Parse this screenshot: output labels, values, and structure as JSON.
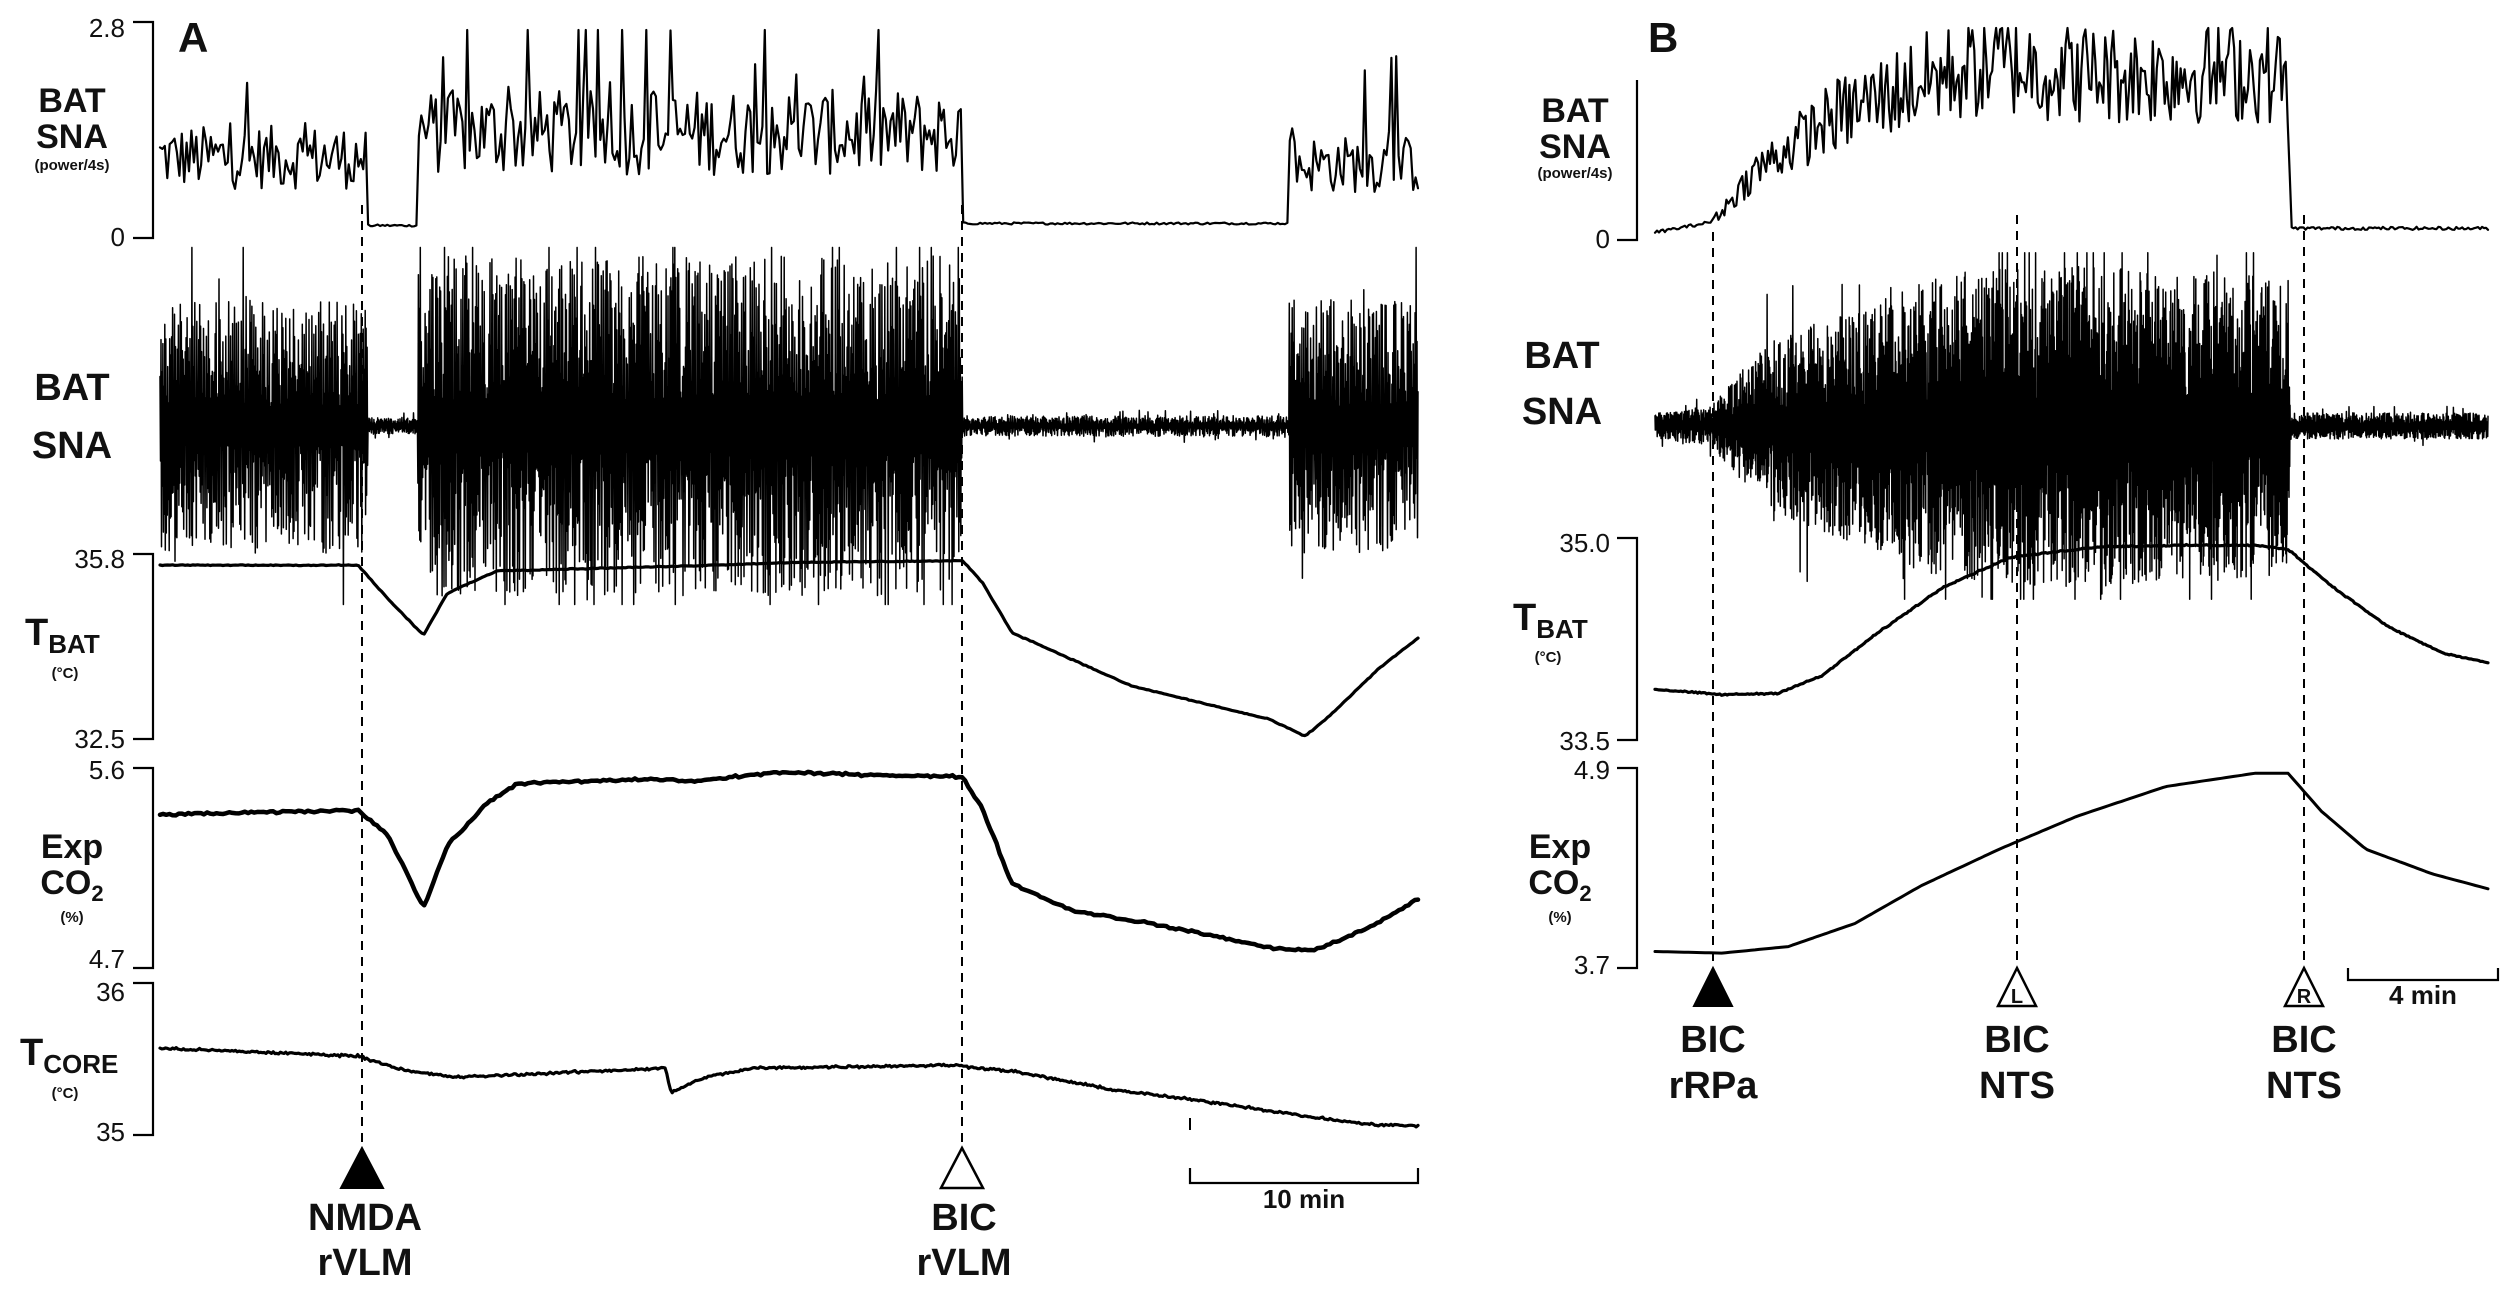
{
  "chart_data": [
    {
      "panel": "A",
      "type": "line",
      "scale_bar_label": "10 min",
      "events": [
        {
          "label1": "NMDA",
          "label2": "rVLM",
          "marker": "filled-triangle",
          "t_min": 10.5
        },
        {
          "label1": "BIC",
          "label2": "rVLM",
          "marker": "open-triangle",
          "t_min": 40.5
        }
      ],
      "traces": [
        {
          "id": "bat_sna_power",
          "label_lines": [
            "BAT",
            "SNA"
          ],
          "unit": "(power/4s)",
          "ticks": [
            "2.8",
            "0"
          ],
          "ylim": [
            0,
            2.8
          ],
          "segments": [
            [
              0,
              10.5,
              1.0
            ],
            [
              10.5,
              13,
              0.02
            ],
            [
              13,
              40.5,
              1.35
            ],
            [
              40.5,
              57,
              0.05
            ],
            [
              57,
              63.5,
              0.9
            ]
          ]
        },
        {
          "id": "bat_sna_raw",
          "label_lines": [
            "BAT",
            "SNA"
          ],
          "unit": "",
          "segments": [
            [
              0,
              10.5,
              0.75
            ],
            [
              10.5,
              13,
              0.05
            ],
            [
              13,
              40.5,
              1.0
            ],
            [
              40.5,
              57,
              0.06
            ],
            [
              57,
              63.5,
              0.75
            ]
          ]
        },
        {
          "id": "t_bat",
          "label_main": "T",
          "label_sub": "BAT",
          "unit": "(°C)",
          "ticks": [
            "35.8",
            "32.5"
          ],
          "ylim": [
            32.5,
            35.8
          ],
          "points": [
            [
              0,
              35.6
            ],
            [
              10,
              35.6
            ],
            [
              11.5,
              35.0
            ],
            [
              13.3,
              34.35
            ],
            [
              14.5,
              35.1
            ],
            [
              17,
              35.5
            ],
            [
              26,
              35.58
            ],
            [
              32,
              35.65
            ],
            [
              40.5,
              35.68
            ],
            [
              41.5,
              35.3
            ],
            [
              43,
              34.4
            ],
            [
              49,
              33.45
            ],
            [
              56,
              32.85
            ],
            [
              57.8,
              32.55
            ],
            [
              59,
              32.9
            ],
            [
              61.5,
              33.75
            ],
            [
              63.5,
              34.3
            ]
          ]
        },
        {
          "id": "exp_co2",
          "label_main": "Exp",
          "label_co2": "CO",
          "label_co2_sub": "2",
          "unit": "(%)",
          "ticks": [
            "5.6",
            "4.7"
          ],
          "ylim": [
            4.7,
            5.6
          ],
          "points": [
            [
              0,
              5.39
            ],
            [
              10,
              5.41
            ],
            [
              11.5,
              5.3
            ],
            [
              12.5,
              5.12
            ],
            [
              13.3,
              4.97
            ],
            [
              14.5,
              5.25
            ],
            [
              16.5,
              5.44
            ],
            [
              18,
              5.53
            ],
            [
              25,
              5.55
            ],
            [
              27,
              5.54
            ],
            [
              31,
              5.58
            ],
            [
              40.5,
              5.56
            ],
            [
              41.5,
              5.42
            ],
            [
              43,
              5.08
            ],
            [
              46,
              4.96
            ],
            [
              50,
              4.9
            ],
            [
              54,
              4.83
            ],
            [
              56,
              4.79
            ],
            [
              58.3,
              4.78
            ],
            [
              61,
              4.88
            ],
            [
              63.5,
              5.01
            ]
          ]
        },
        {
          "id": "t_core",
          "label_main": "T",
          "label_sub": "CORE",
          "unit": "(°C)",
          "ticks": [
            "36",
            "35"
          ],
          "ylim": [
            35,
            36
          ],
          "points": [
            [
              0,
              35.57
            ],
            [
              10,
              35.52
            ],
            [
              12.5,
              35.42
            ],
            [
              15,
              35.38
            ],
            [
              25.5,
              35.44
            ],
            [
              25.8,
              35.28
            ],
            [
              27.5,
              35.38
            ],
            [
              30,
              35.44
            ],
            [
              40,
              35.46
            ],
            [
              43,
              35.42
            ],
            [
              48,
              35.3
            ],
            [
              54,
              35.2
            ],
            [
              58,
              35.12
            ],
            [
              61,
              35.07
            ],
            [
              63.5,
              35.06
            ]
          ]
        }
      ]
    },
    {
      "panel": "B",
      "type": "line",
      "scale_bar_label": "4 min",
      "events": [
        {
          "label1": "BIC",
          "label2": "rRPa",
          "marker": "filled-triangle",
          "marker_letter": "",
          "t_min": 2.5
        },
        {
          "label1": "BIC",
          "label2": "NTS",
          "marker": "open-triangle",
          "marker_letter": "L",
          "t_min": 15.5
        },
        {
          "label1": "BIC",
          "label2": "NTS",
          "marker": "open-triangle",
          "marker_letter": "R",
          "t_min": 28.5
        }
      ],
      "traces": [
        {
          "id": "bat_sna_power",
          "label_lines": [
            "BAT",
            "SNA"
          ],
          "unit": "(power/4s)",
          "ticks": [
            "0"
          ],
          "ylim": [
            0,
            1.0
          ],
          "envelope": [
            [
              0,
              0.0
            ],
            [
              2.5,
              0.05
            ],
            [
              4.5,
              0.35
            ],
            [
              8,
              0.65
            ],
            [
              12,
              0.85
            ],
            [
              15.5,
              0.95
            ],
            [
              18,
              0.9
            ],
            [
              22,
              0.88
            ],
            [
              26,
              0.9
            ],
            [
              28.5,
              0.88
            ],
            [
              28.6,
              0.02
            ],
            [
              37.5,
              0.02
            ]
          ]
        },
        {
          "id": "bat_sna_raw",
          "label_lines": [
            "BAT",
            "SNA"
          ],
          "unit": "",
          "envelope": [
            [
              0,
              0.08
            ],
            [
              2.5,
              0.12
            ],
            [
              5,
              0.5
            ],
            [
              9,
              0.72
            ],
            [
              13,
              0.92
            ],
            [
              18,
              0.98
            ],
            [
              24,
              0.95
            ],
            [
              28.5,
              0.9
            ],
            [
              28.6,
              0.08
            ],
            [
              37.5,
              0.08
            ]
          ]
        },
        {
          "id": "t_bat",
          "label_main": "T",
          "label_sub": "BAT",
          "unit": "(°C)",
          "ticks": [
            "35.0",
            "33.5"
          ],
          "ylim": [
            33.5,
            35.0
          ],
          "points": [
            [
              0,
              33.88
            ],
            [
              3,
              33.84
            ],
            [
              5.5,
              33.85
            ],
            [
              7.5,
              33.98
            ],
            [
              10,
              34.3
            ],
            [
              13,
              34.65
            ],
            [
              16,
              34.87
            ],
            [
              20,
              34.95
            ],
            [
              24,
              34.96
            ],
            [
              27,
              34.96
            ],
            [
              28.5,
              34.93
            ],
            [
              30.5,
              34.65
            ],
            [
              33,
              34.35
            ],
            [
              35.5,
              34.15
            ],
            [
              37.5,
              34.08
            ]
          ]
        },
        {
          "id": "exp_co2",
          "label_main": "Exp",
          "label_co2": "CO",
          "label_co2_sub": "2",
          "unit": "(%)",
          "ticks": [
            "4.9",
            "3.7"
          ],
          "ylim": [
            3.7,
            4.9
          ],
          "points": [
            [
              0,
              3.8
            ],
            [
              3,
              3.79
            ],
            [
              6,
              3.83
            ],
            [
              9,
              3.97
            ],
            [
              12,
              4.2
            ],
            [
              15.5,
              4.42
            ],
            [
              19,
              4.62
            ],
            [
              23,
              4.8
            ],
            [
              27,
              4.88
            ],
            [
              28.5,
              4.88
            ],
            [
              30,
              4.65
            ],
            [
              32,
              4.42
            ],
            [
              35,
              4.27
            ],
            [
              37.5,
              4.18
            ]
          ]
        }
      ]
    }
  ]
}
